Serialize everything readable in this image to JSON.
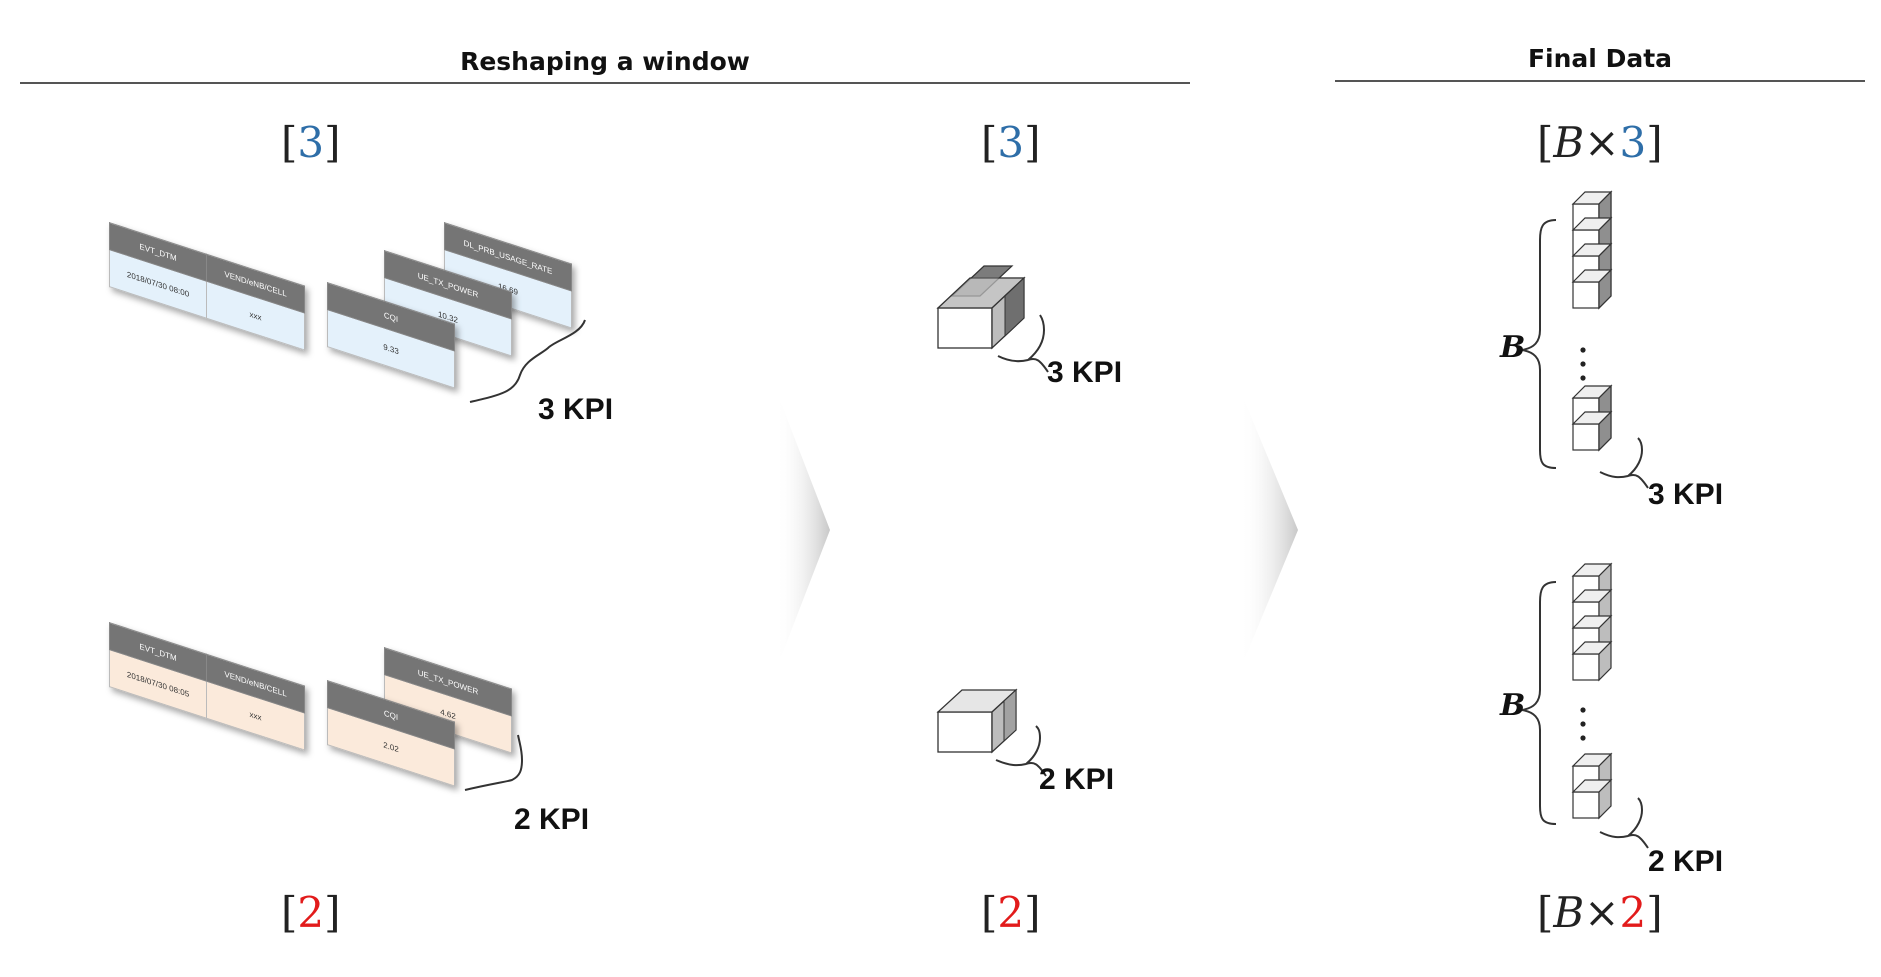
{
  "headers": {
    "reshaping": "Reshaping a window",
    "final": "Final Data"
  },
  "dims": {
    "three": "3",
    "two": "2",
    "b": "B",
    "times": "×"
  },
  "kpi_labels": {
    "three": "3  KPI",
    "two": "2  KPI"
  },
  "b_label": "B",
  "window_3": {
    "main_table": {
      "headers": [
        "EVT_DTM",
        "VEND/eNB/CELL"
      ],
      "values": [
        "2018/07/30 08:00",
        "xxx"
      ]
    },
    "kpis": [
      {
        "header": "CQI",
        "value": "9.33"
      },
      {
        "header": "UE_TX_POWER",
        "value": "10.32"
      },
      {
        "header": "DL_PRB_USAGE_RATE",
        "value": "16.69"
      }
    ]
  },
  "window_2": {
    "main_table": {
      "headers": [
        "EVT_DTM",
        "VEND/eNB/CELL"
      ],
      "values": [
        "2018/07/30 08:05",
        "xxx"
      ]
    },
    "kpis": [
      {
        "header": "CQI",
        "value": "2.02"
      },
      {
        "header": "UE_TX_POWER",
        "value": "4.62"
      }
    ]
  },
  "colors": {
    "blue": "#2e6ea8",
    "red": "#e21b1b",
    "table_header": "#757575",
    "table_blue": "#e4f1fb",
    "table_orange": "#fbeadb"
  }
}
